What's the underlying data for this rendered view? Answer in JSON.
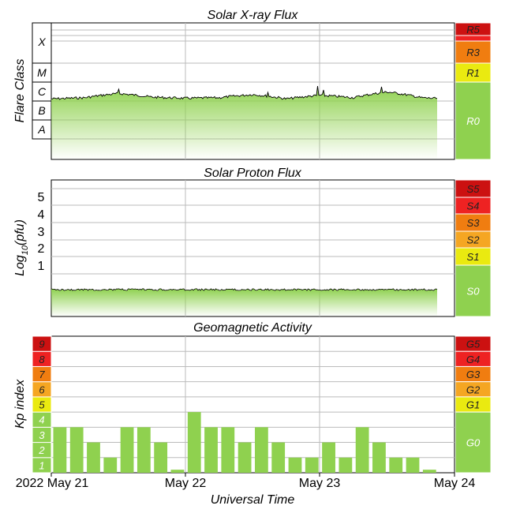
{
  "colors": {
    "green": "#8fd14f",
    "yellow": "#eaea10",
    "orange": "#f5a623",
    "dark_orange": "#f07d10",
    "red": "#ee2222",
    "dark_red": "#cc1111",
    "grid": "#bbbbbb",
    "frame": "#000000"
  },
  "chart_data": [
    {
      "type": "area",
      "title": "Solar X-ray Flux",
      "ylabel": "Flare Class",
      "y_scale": "log",
      "y_levels": [
        {
          "label": "A",
          "value": 1e-08
        },
        {
          "label": "B",
          "value": 1e-07
        },
        {
          "label": "C",
          "value": 1e-06
        },
        {
          "label": "M",
          "value": 1e-05
        },
        {
          "label": "X",
          "value": 0.0001
        }
      ],
      "y_tick_labels": [
        "A",
        "B",
        "C",
        "M",
        "X"
      ],
      "scale_labels": [
        {
          "label": "R5",
          "color": "dark_red"
        },
        {
          "label": "R3",
          "color": "dark_orange"
        },
        {
          "label": "R1",
          "color": "yellow"
        },
        {
          "label": "R0",
          "color": "green"
        }
      ],
      "x": [
        "May 21 00:00",
        "May 21 06:00",
        "May 21 12:00",
        "May 21 18:00",
        "May 22 00:00",
        "May 22 06:00",
        "May 22 12:00",
        "May 22 18:00",
        "May 23 00:00",
        "May 23 06:00",
        "May 23 12:00",
        "May 23 18:00",
        "May 24 00:00"
      ],
      "series": [
        {
          "values": [
            "1.3e-6",
            "1.5e-6",
            "2.5e-6",
            "1.6e-6",
            "1.4e-6",
            "1.5e-6",
            "2.2e-6",
            "1.3e-6",
            "2.0e-6",
            "1.5e-6",
            "3.0e-6",
            "1.5e-6",
            "1.2e-6"
          ]
        }
      ]
    },
    {
      "type": "area",
      "title": "Solar Proton Flux",
      "ylabel": "Log10(pfu)",
      "y_tick_labels": [
        "1",
        "2",
        "3",
        "4",
        "5"
      ],
      "ylim": [
        -1.3,
        5.8
      ],
      "scale_labels": [
        {
          "label": "S5",
          "color": "dark_red"
        },
        {
          "label": "S4",
          "color": "red"
        },
        {
          "label": "S3",
          "color": "dark_orange"
        },
        {
          "label": "S2",
          "color": "orange"
        },
        {
          "label": "S1",
          "color": "yellow"
        },
        {
          "label": "S0",
          "color": "green"
        }
      ],
      "series": [
        {
          "values": [
            -0.35,
            -0.37,
            -0.36,
            -0.35,
            -0.36,
            -0.35,
            -0.34,
            -0.35,
            -0.36,
            -0.35,
            -0.35,
            -0.36,
            -0.35
          ]
        }
      ]
    },
    {
      "type": "bar",
      "title": "Geomagnetic Activity",
      "ylabel": "Kp index",
      "xlabel": "Universal Time",
      "ylim": [
        0,
        9
      ],
      "y_tick_labels": [
        "1",
        "2",
        "3",
        "4",
        "5",
        "6",
        "7",
        "8",
        "9"
      ],
      "x_tick_labels": [
        "2022 May 21",
        "May 22",
        "May 23",
        "May 24"
      ],
      "values": [
        3,
        3,
        2,
        1,
        3,
        3,
        2,
        0.2,
        4,
        3,
        3,
        2,
        3,
        2,
        1,
        1,
        2,
        1,
        3,
        2,
        1,
        1,
        0.2
      ],
      "scale_labels": [
        {
          "label": "G5",
          "color": "dark_red"
        },
        {
          "label": "G4",
          "color": "red"
        },
        {
          "label": "G3",
          "color": "dark_orange"
        },
        {
          "label": "G2",
          "color": "orange"
        },
        {
          "label": "G1",
          "color": "yellow"
        },
        {
          "label": "G0",
          "color": "green"
        }
      ]
    }
  ]
}
